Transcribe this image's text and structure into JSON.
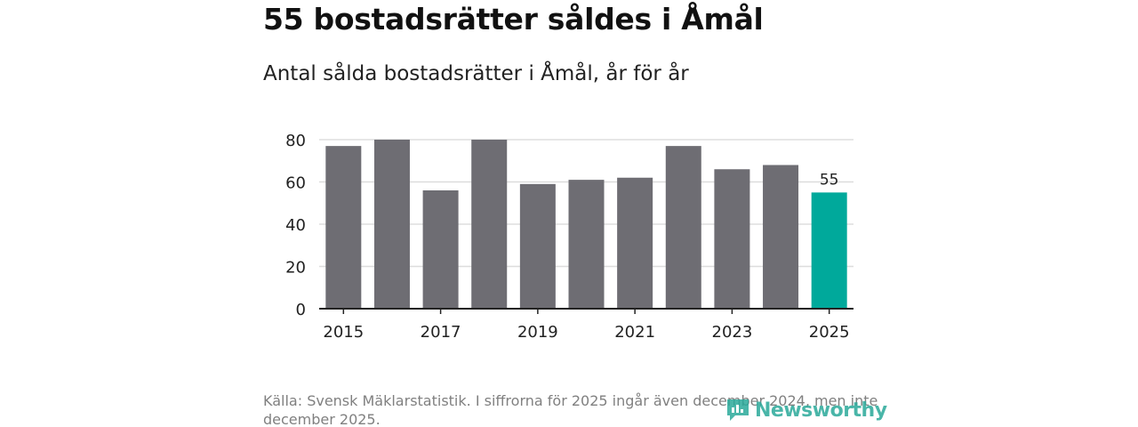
{
  "header": {
    "title": "55 bostadsrätter såldes i Åmål",
    "subtitle": "Antal sålda bostadsrätter i Åmål, år för år"
  },
  "chart_data": {
    "type": "bar",
    "title": "Antal sålda bostadsrätter i Åmål, år för år",
    "xlabel": "",
    "ylabel": "",
    "categories": [
      "2015",
      "2016",
      "2017",
      "2018",
      "2019",
      "2020",
      "2021",
      "2022",
      "2023",
      "2024",
      "2025"
    ],
    "values": [
      77,
      80,
      56,
      80,
      59,
      61,
      62,
      77,
      66,
      68,
      55
    ],
    "ylim": [
      0,
      80
    ],
    "yticks": [
      0,
      20,
      40,
      60,
      80
    ],
    "xticks": [
      "2015",
      "2017",
      "2019",
      "2021",
      "2023",
      "2025"
    ],
    "grid": true,
    "highlight_index": 10,
    "data_labels": [
      {
        "index": 10,
        "text": "55"
      }
    ],
    "colors": {
      "bar": "#6e6d73",
      "highlight": "#00a99b",
      "grid": "#dddddd",
      "axis": "#222222"
    }
  },
  "footer": {
    "source": "Källa: Svensk Mäklarstatistik. I siffrorna för 2025 ingår även december 2024, men inte december 2025.",
    "logo_text": "Newsworthy",
    "logo_color": "#2aa99a"
  }
}
